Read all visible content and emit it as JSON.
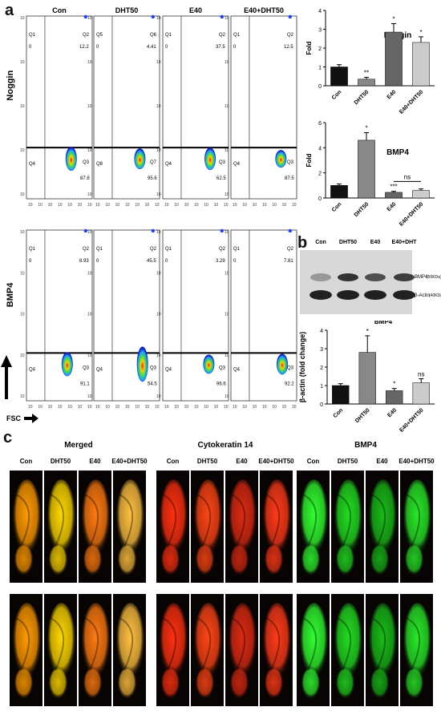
{
  "panels": {
    "a": "a",
    "b": "b",
    "c": "c"
  },
  "flow": {
    "conditions": [
      "Con",
      "DHT50",
      "E40",
      "E40+DHT50"
    ],
    "row_labels": [
      "Noggin",
      "BMP4"
    ],
    "x_axis_label": "FSC",
    "axis_ticks": [
      "10",
      "10",
      "10",
      "10",
      "10",
      "10",
      "10"
    ],
    "rows": [
      [
        {
          "ul": "Q1",
          "ur": "Q2",
          "ll": "Q4",
          "lr": "Q3",
          "ul_val": "0",
          "ur_val": "12.2",
          "lr_val": "87.8"
        },
        {
          "ul": "Q5",
          "ur": "Q6",
          "ll": "Q8",
          "lr": "Q7",
          "ul_val": "0",
          "ur_val": "4.41",
          "lr_val": "95.6"
        },
        {
          "ul": "Q1",
          "ur": "Q2",
          "ll": "Q4",
          "lr": "Q3",
          "ul_val": "0",
          "ur_val": "37.5",
          "lr_val": "62.5"
        },
        {
          "ul": "Q1",
          "ur": "Q2",
          "ll": "Q4",
          "lr": "Q3",
          "ul_val": "0",
          "ur_val": "12.5",
          "lr_val": "87.5"
        }
      ],
      [
        {
          "ul": "Q1",
          "ur": "Q2",
          "ll": "Q4",
          "lr": "Q3",
          "ul_val": "0",
          "ur_val": "8.93",
          "lr_val": "91.1"
        },
        {
          "ul": "Q1",
          "ur": "Q2",
          "ll": "Q4",
          "lr": "Q3",
          "ul_val": "0",
          "ur_val": "45.5",
          "lr_val": "54.5"
        },
        {
          "ul": "Q1",
          "ur": "Q2",
          "ll": "Q4",
          "lr": "Q3",
          "ul_val": "0",
          "ur_val": "3.29",
          "lr_val": "96.6"
        },
        {
          "ul": "Q1",
          "ur": "Q2",
          "ll": "Q4",
          "lr": "Q3",
          "ul_val": "0",
          "ur_val": "7.81",
          "lr_val": "92.2"
        }
      ]
    ]
  },
  "chart_data": [
    {
      "type": "bar",
      "title": "Noggin",
      "ylabel": "Fold",
      "categories": [
        "Con",
        "DHT50",
        "E40",
        "E40+DHT50"
      ],
      "values": [
        1.0,
        0.35,
        2.85,
        2.3
      ],
      "errors": [
        0.12,
        0.1,
        0.45,
        0.3
      ],
      "colors": [
        "#111111",
        "#888888",
        "#666666",
        "#cccccc"
      ],
      "significance": [
        "",
        "**",
        "*",
        "*"
      ],
      "ylim": [
        0,
        4
      ],
      "yticks": [
        "0",
        "1",
        "2",
        "3",
        "4"
      ]
    },
    {
      "type": "bar",
      "title": "BMP4",
      "ylabel": "Fold",
      "categories": [
        "Con",
        "DHT50",
        "E40",
        "E40+DHT50"
      ],
      "values": [
        1.0,
        4.6,
        0.45,
        0.6
      ],
      "errors": [
        0.12,
        0.6,
        0.08,
        0.12
      ],
      "colors": [
        "#111111",
        "#888888",
        "#666666",
        "#cccccc"
      ],
      "significance": [
        "",
        "*",
        "***",
        ""
      ],
      "bracket_label": "ns",
      "ylim": [
        0,
        6
      ],
      "yticks": [
        "0",
        "2",
        "4",
        "6"
      ]
    },
    {
      "type": "bar",
      "title": "BMP4",
      "ylabel": "β-actin (fold change)",
      "categories": [
        "Con",
        "DHT50",
        "E40",
        "E40+DHT50"
      ],
      "values": [
        1.0,
        2.8,
        0.72,
        1.15
      ],
      "errors": [
        0.1,
        0.9,
        0.12,
        0.22
      ],
      "colors": [
        "#111111",
        "#888888",
        "#666666",
        "#cccccc"
      ],
      "significance": [
        "",
        "*",
        "*",
        "ns"
      ],
      "ylim": [
        0,
        4
      ],
      "yticks": [
        "0",
        "1",
        "2",
        "3",
        "4"
      ]
    }
  ],
  "western": {
    "lanes": [
      "Con",
      "DHT50",
      "E40",
      "E40+DHT"
    ],
    "band_labels": [
      "BMP4",
      "(50KDa)",
      "β-Actin",
      "(40KDa)"
    ]
  },
  "fluor": {
    "groups": [
      {
        "title": "Merged",
        "colors": [
          "#ff9a00",
          "#ffd800",
          "#ff7a10",
          "#ffc040"
        ]
      },
      {
        "title": "Cytokeratin 14",
        "colors": [
          "#ff3010",
          "#ff4515",
          "#dd2a12",
          "#ff3a18"
        ]
      },
      {
        "title": "BMP4",
        "colors": [
          "#30ff30",
          "#22dd22",
          "#18bb18",
          "#28e828"
        ]
      }
    ],
    "lanes": [
      "Con",
      "DHT50",
      "E40",
      "E40+DHT50"
    ]
  }
}
